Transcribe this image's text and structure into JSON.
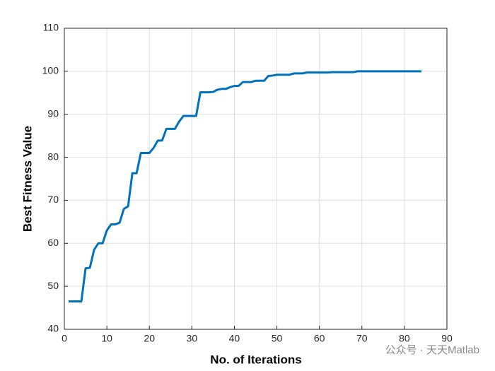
{
  "chart_data": {
    "type": "line",
    "xlabel": "No. of Iterations",
    "ylabel": "Best Fitness Value",
    "watermark": "公众号 · 天天Matlab",
    "x": [
      1,
      2,
      3,
      4,
      5,
      6,
      7,
      8,
      9,
      10,
      11,
      12,
      13,
      14,
      15,
      16,
      17,
      18,
      19,
      20,
      21,
      22,
      23,
      24,
      25,
      26,
      27,
      28,
      29,
      30,
      31,
      32,
      33,
      34,
      35,
      36,
      37,
      38,
      39,
      40,
      41,
      42,
      43,
      44,
      45,
      46,
      47,
      48,
      49,
      50,
      51,
      52,
      53,
      54,
      55,
      56,
      57,
      58,
      59,
      60,
      61,
      62,
      63,
      64,
      65,
      66,
      67,
      68,
      69,
      70,
      71,
      72,
      73,
      74,
      75,
      76,
      77,
      78,
      79,
      80,
      81,
      82,
      83,
      84
    ],
    "series": [
      {
        "name": "Best Fitness",
        "color": "#0072bd",
        "values": [
          46.5,
          46.5,
          46.5,
          46.5,
          54.2,
          54.3,
          58.5,
          60,
          60,
          63,
          64.4,
          64.4,
          64.8,
          68,
          68.6,
          76.3,
          76.3,
          81,
          81,
          81,
          82.2,
          83.9,
          83.9,
          86.6,
          86.6,
          86.6,
          88.3,
          89.6,
          89.6,
          89.6,
          89.6,
          95.1,
          95.1,
          95.1,
          95.2,
          95.7,
          95.9,
          95.9,
          96.3,
          96.6,
          96.6,
          97.5,
          97.5,
          97.5,
          97.8,
          97.8,
          97.8,
          98.9,
          99,
          99.2,
          99.2,
          99.2,
          99.2,
          99.5,
          99.5,
          99.5,
          99.7,
          99.7,
          99.7,
          99.7,
          99.7,
          99.7,
          99.8,
          99.8,
          99.8,
          99.8,
          99.8,
          99.8,
          100,
          100,
          100,
          100,
          100,
          100,
          100,
          100,
          100,
          100,
          100,
          100,
          100,
          100,
          100,
          100
        ]
      }
    ],
    "xlim": [
      0,
      90
    ],
    "xticks": [
      0,
      10,
      20,
      30,
      40,
      50,
      60,
      70,
      80,
      90
    ],
    "ylim": [
      40,
      110
    ],
    "yticks": [
      40,
      50,
      60,
      70,
      80,
      90,
      100,
      110
    ],
    "grid": true
  }
}
